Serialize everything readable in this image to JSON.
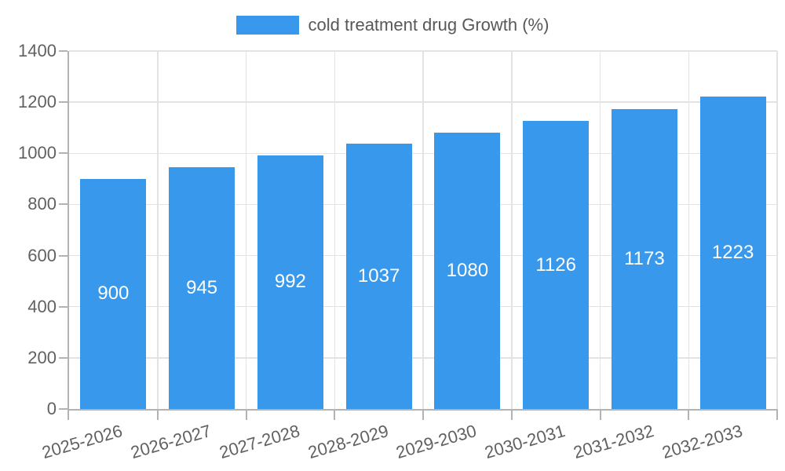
{
  "chart_data": {
    "type": "bar",
    "title": "",
    "legend": {
      "label": "cold treatment drug Growth (%)",
      "position": "top"
    },
    "categories": [
      "2025-2026",
      "2026-2027",
      "2027-2028",
      "2028-2029",
      "2029-2030",
      "2030-2031",
      "2031-2032",
      "2032-2033"
    ],
    "values": [
      900,
      945,
      992,
      1037,
      1080,
      1126,
      1173,
      1223
    ],
    "xlabel": "",
    "ylabel": "",
    "ylim": [
      0,
      1400
    ],
    "ytick_step": 200,
    "ytick_labels": [
      "0",
      "200",
      "400",
      "600",
      "800",
      "1000",
      "1200",
      "1400"
    ],
    "grid": true,
    "x_label_rotation_deg": -16,
    "colors": {
      "bar": "#3898ec",
      "value_label": "#ffffff",
      "axis": "#b3b3b3",
      "grid": "#e3e3e3",
      "tick_text": "#616161",
      "legend_text": "#58585a"
    }
  }
}
